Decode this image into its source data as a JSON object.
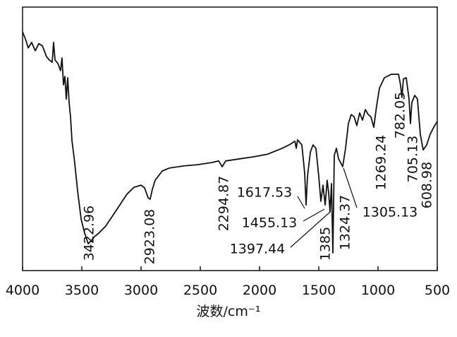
{
  "chart_data": {
    "type": "line",
    "xlabel": "波数/cm⁻¹",
    "color": "#111111",
    "xlim": [
      4000,
      500
    ],
    "ylim": [
      0,
      100
    ],
    "xticks": [
      4000,
      3500,
      3000,
      2500,
      2000,
      1500,
      1000,
      500
    ],
    "x": [
      4000,
      3976,
      3952,
      3923,
      3893,
      3863,
      3833,
      3798,
      3774,
      3750,
      3738,
      3726,
      3702,
      3679,
      3667,
      3655,
      3643,
      3631,
      3619,
      3607,
      3595,
      3583,
      3571,
      3560,
      3536,
      3506,
      3476,
      3446,
      3417,
      3393,
      3357,
      3298,
      3238,
      3179,
      3119,
      3060,
      3000,
      2970,
      2940,
      2923,
      2905,
      2881,
      2821,
      2762,
      2643,
      2524,
      2405,
      2345,
      2315,
      2286,
      2167,
      2048,
      1929,
      1810,
      1750,
      1702,
      1690,
      1679,
      1643,
      1619,
      1607,
      1595,
      1571,
      1548,
      1524,
      1500,
      1482,
      1464,
      1446,
      1429,
      1417,
      1405,
      1393,
      1381,
      1369,
      1351,
      1333,
      1310,
      1298,
      1274,
      1250,
      1226,
      1202,
      1179,
      1155,
      1131,
      1107,
      1083,
      1060,
      1036,
      1012,
      988,
      946,
      887,
      827,
      810,
      798,
      786,
      762,
      738,
      726,
      714,
      690,
      667,
      643,
      619,
      589,
      560,
      530,
      500
    ],
    "values": [
      90.6,
      87.9,
      84.5,
      86.6,
      83.4,
      86.1,
      85.3,
      81.2,
      79.9,
      79.1,
      86.6,
      79.9,
      78.6,
      75.9,
      80.7,
      70.5,
      73.7,
      65.1,
      73.2,
      63.8,
      58.4,
      49.1,
      45.0,
      41.0,
      30.3,
      19.6,
      14.2,
      10.2,
      11.5,
      12.9,
      14.2,
      16.9,
      20.9,
      24.9,
      29.0,
      31.6,
      32.4,
      31.4,
      27.6,
      27.1,
      30.8,
      34.3,
      37.8,
      38.9,
      39.7,
      40.2,
      41.0,
      41.6,
      39.4,
      41.6,
      42.4,
      43.2,
      44.2,
      46.4,
      47.7,
      49.1,
      46.4,
      49.6,
      47.7,
      37.0,
      24.9,
      35.7,
      45.0,
      47.7,
      46.4,
      35.7,
      26.3,
      32.4,
      24.9,
      34.3,
      29.8,
      22.3,
      33.0,
      6.7,
      43.7,
      46.4,
      42.4,
      40.5,
      39.4,
      46.4,
      55.8,
      59.2,
      58.4,
      55.0,
      59.8,
      57.1,
      61.1,
      59.2,
      58.4,
      54.4,
      62.5,
      69.2,
      73.2,
      74.5,
      74.5,
      70.5,
      65.7,
      72.7,
      73.2,
      65.1,
      55.8,
      63.8,
      66.5,
      65.1,
      51.7,
      45.8,
      47.7,
      51.7,
      54.4,
      56.6
    ],
    "annotations": [
      "3422.96",
      "2923.08",
      "2294.87",
      "1385",
      "1324.37",
      "1269.24",
      "782.05",
      "705.13",
      "608.98",
      "1617.53",
      "1455.13",
      "1397.44",
      "1305.13"
    ]
  }
}
